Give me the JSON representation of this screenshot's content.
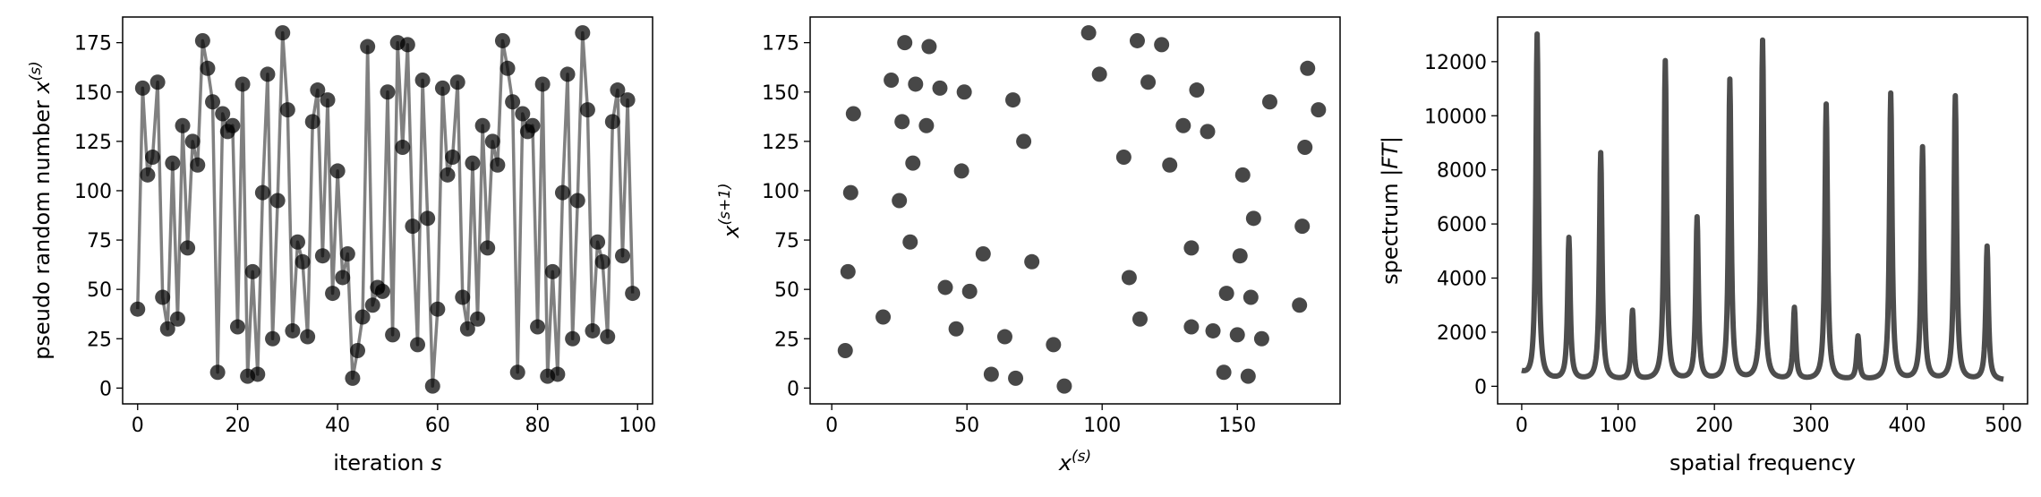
{
  "chart_data": [
    {
      "type": "line",
      "xlabel": "iteration s",
      "ylabel": "pseudo random number x^(s)",
      "xlim": [
        -3,
        103
      ],
      "ylim": [
        -8,
        188
      ],
      "xticks": [
        0,
        20,
        40,
        60,
        80,
        100
      ],
      "yticks": [
        0,
        25,
        50,
        75,
        100,
        125,
        150,
        175
      ],
      "line_color": "#808080",
      "marker_color": "#000000",
      "x": [
        0,
        1,
        2,
        3,
        4,
        5,
        6,
        7,
        8,
        9,
        10,
        11,
        12,
        13,
        14,
        15,
        16,
        17,
        18,
        19,
        20,
        21,
        22,
        23,
        24,
        25,
        26,
        27,
        28,
        29,
        30,
        31,
        32,
        33,
        34,
        35,
        36,
        37,
        38,
        39,
        40,
        41,
        42,
        43,
        44,
        45,
        46,
        47,
        48,
        49,
        50,
        51,
        52,
        53,
        54,
        55,
        56,
        57,
        58,
        59,
        60,
        61,
        62,
        63,
        64,
        65,
        66,
        67,
        68,
        69,
        70,
        71,
        72,
        73,
        74,
        75,
        76,
        77,
        78,
        79,
        80,
        81,
        82,
        83,
        84,
        85,
        86,
        87,
        88,
        89,
        90,
        91,
        92,
        93,
        94,
        95,
        96,
        97,
        98,
        99
      ],
      "y": [
        40,
        152,
        108,
        117,
        155,
        46,
        30,
        114,
        35,
        133,
        71,
        125,
        113,
        176,
        162,
        145,
        8,
        139,
        130,
        133,
        31,
        154,
        6,
        59,
        7,
        99,
        159,
        25,
        95,
        180,
        141,
        29,
        74,
        64,
        26,
        135,
        151,
        67,
        146,
        48,
        110,
        56,
        68,
        5,
        19,
        36,
        173,
        42,
        51,
        49,
        150,
        27,
        175,
        122,
        174,
        82,
        22,
        156,
        86,
        1,
        40,
        152,
        108,
        117,
        155,
        46,
        30,
        114,
        35,
        133,
        71,
        125,
        113,
        176,
        162,
        145,
        8,
        139,
        130,
        133,
        31,
        154,
        6,
        59,
        7,
        99,
        159,
        25,
        95,
        180,
        141,
        29,
        74,
        64,
        26,
        135,
        151,
        67,
        146,
        48
      ]
    },
    {
      "type": "scatter",
      "xlabel": "x^(s)",
      "ylabel": "x^(s+1)",
      "xlim": [
        -8,
        188
      ],
      "ylim": [
        -8,
        188
      ],
      "xticks": [
        0,
        50,
        100,
        150
      ],
      "yticks": [
        0,
        25,
        50,
        75,
        100,
        125,
        150,
        175
      ],
      "marker_color": "#000000",
      "x": [
        40,
        152,
        108,
        117,
        155,
        46,
        30,
        114,
        35,
        133,
        71,
        125,
        113,
        176,
        162,
        145,
        8,
        139,
        130,
        133,
        31,
        154,
        6,
        59,
        7,
        99,
        159,
        25,
        95,
        180,
        141,
        29,
        74,
        64,
        26,
        135,
        151,
        67,
        146,
        48,
        110,
        56,
        68,
        5,
        19,
        36,
        173,
        42,
        51,
        49,
        150,
        27,
        175,
        122,
        174,
        82,
        22,
        156,
        86
      ],
      "y": [
        152,
        108,
        117,
        155,
        46,
        30,
        114,
        35,
        133,
        71,
        125,
        113,
        176,
        162,
        145,
        8,
        139,
        130,
        133,
        31,
        154,
        6,
        59,
        7,
        99,
        159,
        25,
        95,
        180,
        141,
        29,
        74,
        64,
        26,
        135,
        151,
        67,
        146,
        48,
        110,
        56,
        68,
        5,
        19,
        36,
        173,
        42,
        51,
        49,
        150,
        27,
        175,
        122,
        174,
        82,
        22,
        156,
        86,
        1
      ]
    },
    {
      "type": "line",
      "xlabel": "spatial frequency",
      "ylabel": "spectrum |FT|",
      "xlim": [
        -25,
        525
      ],
      "ylim": [
        -650,
        13650
      ],
      "xticks": [
        0,
        100,
        200,
        300,
        400,
        500
      ],
      "yticks": [
        0,
        2000,
        4000,
        6000,
        8000,
        10000,
        12000
      ],
      "line_color": "#4d4d4d",
      "baseline": 200,
      "start_value": 450,
      "peaks": [
        {
          "x": 16,
          "y": 13000
        },
        {
          "x": 49,
          "y": 5450
        },
        {
          "x": 82,
          "y": 8600
        },
        {
          "x": 115,
          "y": 2750
        },
        {
          "x": 149,
          "y": 12000
        },
        {
          "x": 182,
          "y": 6200
        },
        {
          "x": 216,
          "y": 11300
        },
        {
          "x": 250,
          "y": 12750
        },
        {
          "x": 283,
          "y": 2850
        },
        {
          "x": 316,
          "y": 10400
        },
        {
          "x": 349,
          "y": 1800
        },
        {
          "x": 383,
          "y": 10800
        },
        {
          "x": 416,
          "y": 8800
        },
        {
          "x": 450,
          "y": 10700
        },
        {
          "x": 483,
          "y": 5150
        }
      ]
    }
  ]
}
